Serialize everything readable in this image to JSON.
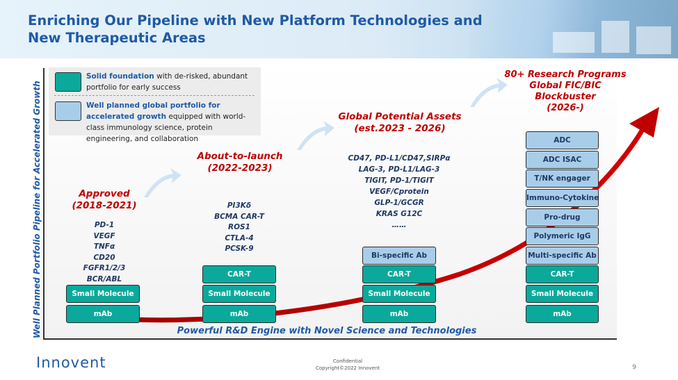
{
  "title": "Enriching Our Pipeline with New Platform Technologies and New Therapeutic Areas",
  "axes": {
    "y_label": "Well Planned Portfolio Pipeline for Accelerated Growth",
    "x_label": "Powerful R&D Engine with Novel Science and Technologies"
  },
  "legend": {
    "solid": {
      "bold": "Solid foundation",
      "rest": " with de-risked, abundant portfolio for early success",
      "color": "#0aa99b"
    },
    "planned": {
      "bold": "Well planned global portfolio for accelerated growth",
      "rest": " equipped with world-class immunology science, protein engineering, and collaboration",
      "color": "#a8cde9"
    }
  },
  "stages": {
    "approved": {
      "title": [
        "Approved",
        "(2018-2021)"
      ],
      "targets": [
        "PD-1",
        "VEGF",
        "TNFα",
        "CD20",
        "FGFR1/2/3",
        "BCR/ABL"
      ],
      "boxes": [
        {
          "label": "Small Molecule",
          "kind": "solid"
        },
        {
          "label": "mAb",
          "kind": "solid"
        }
      ]
    },
    "about_to_launch": {
      "title": [
        "About-to-launch",
        "(2022-2023)"
      ],
      "targets": [
        "PI3Kδ",
        "BCMA CAR-T",
        "ROS1",
        "CTLA-4",
        "PCSK-9"
      ],
      "boxes": [
        {
          "label": "CAR-T",
          "kind": "solid"
        },
        {
          "label": "Small Molecule",
          "kind": "solid"
        },
        {
          "label": "mAb",
          "kind": "solid"
        }
      ]
    },
    "global_potential": {
      "title": [
        "Global Potential Assets",
        "(est.2023 - 2026)"
      ],
      "targets": [
        "CD47, PD-L1/CD47,SIRPα",
        "LAG-3, PD-L1/LAG-3",
        "TIGIT, PD-1/TIGIT",
        "VEGF/Cprotein",
        "GLP-1/GCGR",
        "KRAS G12C",
        "……"
      ],
      "boxes": [
        {
          "label": "Bi-specific Ab",
          "kind": "plan"
        },
        {
          "label": "CAR-T",
          "kind": "solid"
        },
        {
          "label": "Small Molecule",
          "kind": "solid"
        },
        {
          "label": "mAb",
          "kind": "solid"
        }
      ]
    },
    "research": {
      "title": [
        "80+ Research Programs",
        "Global FIC/BIC",
        "Blockbuster",
        "(2026-)"
      ],
      "boxes": [
        {
          "label": "ADC",
          "kind": "plan"
        },
        {
          "label": "ADC ISAC",
          "kind": "plan"
        },
        {
          "label": "T/NK engager",
          "kind": "plan"
        },
        {
          "label": "Immuno-Cytokine",
          "kind": "plan"
        },
        {
          "label": "Pro-drug",
          "kind": "plan"
        },
        {
          "label": "Polymeric IgG",
          "kind": "plan"
        },
        {
          "label": "Multi-specific Ab",
          "kind": "plan"
        },
        {
          "label": "CAR-T",
          "kind": "solid"
        },
        {
          "label": "Small Molecule",
          "kind": "solid"
        },
        {
          "label": "mAb",
          "kind": "solid"
        }
      ]
    }
  },
  "footer": {
    "logo": "Innovent",
    "confidential": "Confidential",
    "copyright": "Copyright©2022 Innovent",
    "page": "9"
  },
  "colors": {
    "title": "#1f5aa6",
    "stage_title": "#c00000",
    "growth_arrow": "#c00000",
    "target_text": "#1f3864"
  }
}
